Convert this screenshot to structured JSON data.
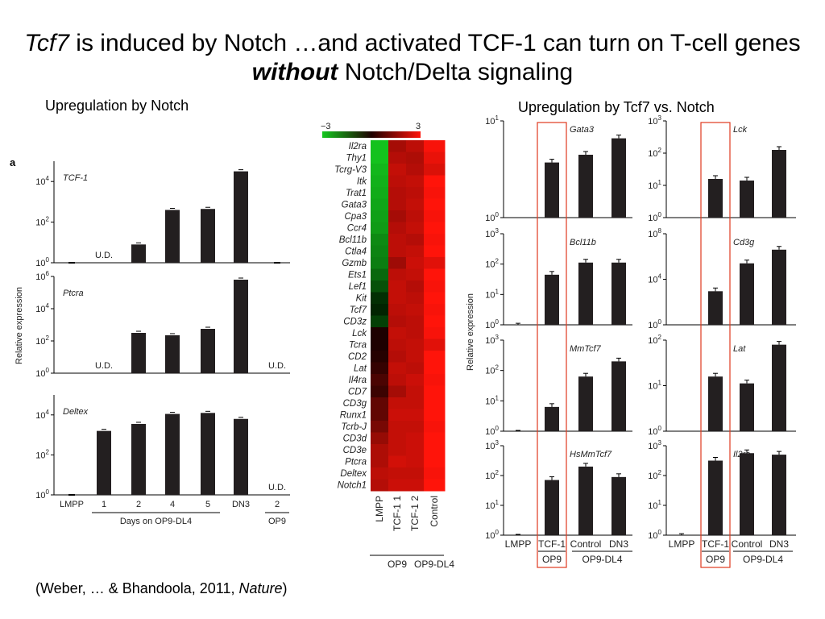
{
  "slide": {
    "title_part1": "Tcf7",
    "title_part2": " is induced by Notch …and activated TCF-1 can turn on T-cell genes ",
    "title_part3": "without",
    "title_part4": " Notch/Delta signaling",
    "left_heading": "Upregulation by Notch",
    "right_heading": "Upregulation by Tcf7 vs. Notch",
    "citation_part1": "(Weber, … & Bhandoola, 2011, ",
    "citation_part2": "Nature",
    "citation_part3": ")"
  },
  "chart_data": [
    {
      "type": "bar",
      "panel_letter": "a",
      "ylabel": "Relative expression",
      "categories": [
        "LMPP",
        "1",
        "2",
        "4",
        "5",
        "DN3",
        "2"
      ],
      "group_labels": [
        {
          "label": "Days on OP9-DL4",
          "from": 1,
          "to": 4
        },
        {
          "label": "OP9",
          "from": 6,
          "to": 6
        }
      ],
      "log_scale": true,
      "panels": [
        {
          "name": "TCF-1",
          "ylim_exp": [
            0,
            5
          ],
          "ticks": [
            0,
            2,
            4
          ],
          "values_log10": [
            0,
            null,
            0.9,
            2.6,
            2.65,
            4.5,
            0
          ],
          "ud_labels": [
            {
              "label": "U.D.",
              "index": 1
            }
          ]
        },
        {
          "name": "Ptcra",
          "ylim_exp": [
            0,
            6
          ],
          "ticks": [
            0,
            2,
            4,
            6
          ],
          "values_log10": [
            null,
            null,
            2.5,
            2.35,
            2.75,
            5.8,
            null
          ],
          "ud_labels": [
            {
              "label": "U.D.",
              "index": 1
            },
            {
              "label": "U.D.",
              "index": 6
            }
          ]
        },
        {
          "name": "Deltex",
          "ylim_exp": [
            0,
            5
          ],
          "ticks": [
            0,
            2,
            4
          ],
          "values_log10": [
            0,
            3.2,
            3.55,
            4.05,
            4.1,
            3.8,
            null
          ],
          "ud_labels": [
            {
              "label": "U.D.",
              "index": 6
            }
          ]
        }
      ]
    },
    {
      "type": "heatmap",
      "scale_min": "−3",
      "scale_max": "3",
      "columns": [
        "LMPP",
        "TCF-1 1",
        "TCF-1 2",
        "Control"
      ],
      "column_groups": [
        {
          "label": "OP9",
          "from": 0,
          "to": 2
        },
        {
          "label": "OP9-DL4",
          "from": 3,
          "to": 3
        }
      ],
      "rows": [
        "Il2ra",
        "Thy1",
        "Tcrg-V3",
        "Itk",
        "Trat1",
        "Gata3",
        "Cpa3",
        "Ccr4",
        "Bcl11b",
        "Ctla4",
        "Gzmb",
        "Ets1",
        "Lef1",
        "Kit",
        "Tcf7",
        "CD3z",
        "Lck",
        "Tcra",
        "CD2",
        "Lat",
        "Il4ra",
        "CD7",
        "CD3g",
        "Runx1",
        "Tcrb-J",
        "CD3d",
        "CD3e",
        "Ptcra",
        "Deltex",
        "Notch1"
      ],
      "values": [
        [
          -2.9,
          1.8,
          2.1,
          2.9
        ],
        [
          -2.9,
          2.0,
          1.9,
          2.7
        ],
        [
          -2.7,
          2.2,
          2.0,
          2.5
        ],
        [
          -2.6,
          2.1,
          2.2,
          3.0
        ],
        [
          -2.5,
          2.0,
          2.1,
          2.9
        ],
        [
          -2.4,
          2.0,
          2.2,
          3.0
        ],
        [
          -2.3,
          1.8,
          2.1,
          2.9
        ],
        [
          -2.2,
          2.0,
          2.2,
          3.0
        ],
        [
          -1.9,
          2.1,
          2.0,
          2.9
        ],
        [
          -1.8,
          2.1,
          2.2,
          3.0
        ],
        [
          -1.7,
          1.7,
          2.3,
          2.6
        ],
        [
          -1.3,
          2.1,
          2.2,
          3.0
        ],
        [
          -0.9,
          2.2,
          2.0,
          2.9
        ],
        [
          -0.3,
          2.2,
          2.1,
          3.0
        ],
        [
          -0.1,
          2.1,
          2.2,
          2.9
        ],
        [
          -0.6,
          2.0,
          2.1,
          3.0
        ],
        [
          0.0,
          2.2,
          2.1,
          2.9
        ],
        [
          0.0,
          2.1,
          2.2,
          2.6
        ],
        [
          0.1,
          2.0,
          2.2,
          3.0
        ],
        [
          0.3,
          2.2,
          2.1,
          3.0
        ],
        [
          0.6,
          2.1,
          2.3,
          2.9
        ],
        [
          0.4,
          1.8,
          2.2,
          3.0
        ],
        [
          0.9,
          2.2,
          2.2,
          3.0
        ],
        [
          0.9,
          2.3,
          2.3,
          3.0
        ],
        [
          1.2,
          2.2,
          2.2,
          2.9
        ],
        [
          1.6,
          2.2,
          2.3,
          3.0
        ],
        [
          1.9,
          2.2,
          2.3,
          3.0
        ],
        [
          1.9,
          2.4,
          2.3,
          3.0
        ],
        [
          2.1,
          2.2,
          2.2,
          2.9
        ],
        [
          2.0,
          2.3,
          2.3,
          3.0
        ]
      ]
    },
    {
      "type": "bar",
      "ylabel": "Relative expression",
      "categories": [
        "LMPP",
        "TCF-1",
        "Control",
        "DN3"
      ],
      "group_labels": [
        {
          "label": "OP9",
          "from": 1,
          "to": 1
        },
        {
          "label": "OP9-DL4",
          "from": 2,
          "to": 3
        }
      ],
      "log_scale": true,
      "highlight_category": "TCF-1",
      "panels": [
        {
          "name": "Gata3",
          "ylim_exp": [
            0,
            1
          ],
          "ticks": [
            0,
            1
          ],
          "values_log10": [
            null,
            0.57,
            0.65,
            0.82
          ]
        },
        {
          "name": "Lck",
          "ylim_exp": [
            0,
            3
          ],
          "ticks": [
            0,
            1,
            2,
            3
          ],
          "values_log10": [
            null,
            1.2,
            1.15,
            2.1
          ]
        },
        {
          "name": "Bcl11b",
          "ylim_exp": [
            0,
            3
          ],
          "ticks": [
            0,
            1,
            2,
            3
          ],
          "values_log10": [
            0.05,
            1.65,
            2.05,
            2.05
          ]
        },
        {
          "name": "Cd3g",
          "ylim_exp": [
            0,
            8
          ],
          "ticks": [
            0,
            4,
            8
          ],
          "values_log10": [
            null,
            2.95,
            5.4,
            6.6
          ]
        },
        {
          "name": "MmTcf7",
          "ylim_exp": [
            0,
            3
          ],
          "ticks": [
            0,
            1,
            2,
            3
          ],
          "values_log10": [
            0,
            0.8,
            1.8,
            2.3
          ]
        },
        {
          "name": "Lat",
          "ylim_exp": [
            0,
            2
          ],
          "ticks": [
            0,
            1,
            2
          ],
          "values_log10": [
            null,
            1.2,
            1.05,
            1.9
          ]
        },
        {
          "name": "HsMmTcf7",
          "ylim_exp": [
            0,
            3
          ],
          "ticks": [
            0,
            1,
            2,
            3
          ],
          "values_log10": [
            0,
            1.85,
            2.3,
            1.95
          ]
        },
        {
          "name": "Il2ra",
          "ylim_exp": [
            0,
            3
          ],
          "ticks": [
            0,
            1,
            2,
            3
          ],
          "values_log10": [
            0.05,
            2.5,
            2.75,
            2.7
          ]
        }
      ]
    }
  ]
}
